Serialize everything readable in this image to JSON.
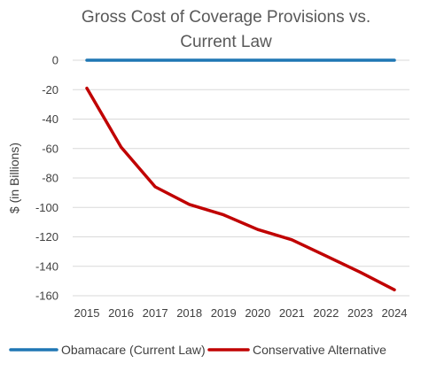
{
  "chart_data": {
    "type": "line",
    "title_line1": "Gross Cost of Coverage Provisions vs.",
    "title_line2": "Current Law",
    "xlabel": "",
    "ylabel": "$ (in Billions)",
    "x": [
      "2015",
      "2016",
      "2017",
      "2018",
      "2019",
      "2020",
      "2021",
      "2022",
      "2023",
      "2024"
    ],
    "ylim": [
      -160,
      0
    ],
    "yticks": [
      0,
      -20,
      -40,
      -60,
      -80,
      -100,
      -120,
      -140,
      -160
    ],
    "grid": true,
    "legend_position": "bottom",
    "series": [
      {
        "name": "Obamacare (Current Law)",
        "color": "#1f77b4",
        "values": [
          0,
          0,
          0,
          0,
          0,
          0,
          0,
          0,
          0,
          0
        ]
      },
      {
        "name": "Conservative Alternative",
        "color": "#c00000",
        "values": [
          -19,
          -59,
          -86,
          -98,
          -105,
          -115,
          -122,
          -133,
          -144,
          -156
        ]
      }
    ]
  }
}
